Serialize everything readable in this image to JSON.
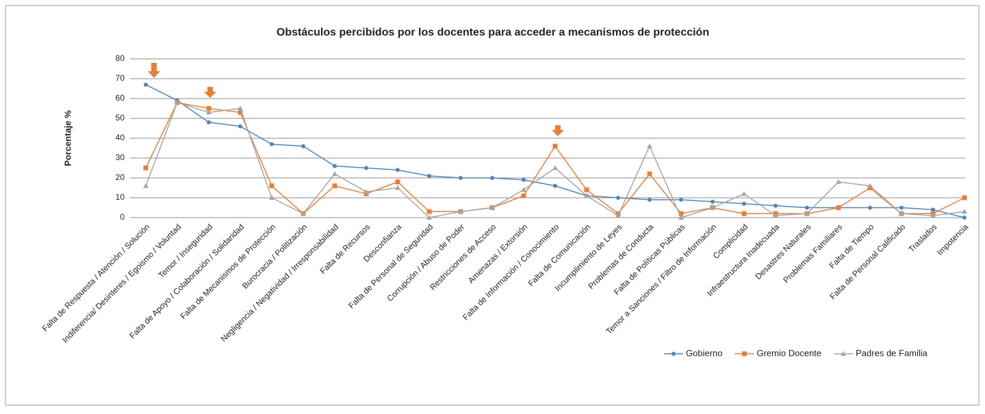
{
  "chart_data": {
    "type": "line",
    "title": "Obstáculos percibidos por los docentes para acceder a mecanismos de protección",
    "y_label": "Porcentaje %",
    "categories": [
      "Falta de Respuesta / Atención / Solución",
      "Indiferencia/ Desinteres / Egoismo / Voluntad",
      "Temor / Inseguridad",
      "Falta de Apoyo / Colaboración / Solidaridad",
      "Falta de Mecanismos de Protección",
      "Burocracia / Politización",
      "Negligencia / Negatividad / Irresponsabilidad",
      "Falta de Recursos",
      "Desconfianza",
      "Falta de Personal de Seguridad",
      "Corrupción / Abuso de Poder",
      "Restricciones de Acceso",
      "Amenazas / Extorsión",
      "Falta de Información / Conocimiento",
      "Falta de Comunicación",
      "Incumplimiento de Leyes",
      "Problemas de Conducta",
      "Falta de Políticas Públicas",
      "Temor a Sanciones / Filtro de Información",
      "Complicidad",
      "Infraestructura Inadecuada",
      "Desastres Naturales",
      "Problemas Familiares",
      "Falta de Tiempo",
      "Falta de Personal Calificado",
      "Traslados",
      "Impotencia"
    ],
    "series": [
      {
        "name": "Gobierno",
        "color": "#4a86c5",
        "marker": "circle",
        "values": [
          67,
          59,
          48,
          46,
          37,
          36,
          26,
          25,
          24,
          21,
          20,
          20,
          19,
          16,
          11,
          10,
          9,
          9,
          8,
          7,
          6,
          5,
          5,
          5,
          5,
          4,
          0
        ]
      },
      {
        "name": "Gremio Docente",
        "color": "#ed7d31",
        "marker": "square",
        "values": [
          25,
          58,
          55,
          53,
          16,
          2,
          16,
          12,
          18,
          3,
          3,
          5,
          11,
          36,
          14,
          2,
          22,
          2,
          5,
          2,
          2,
          2,
          5,
          15,
          2,
          2,
          10
        ]
      },
      {
        "name": "Padres de Familia",
        "color": "#a5a5a5",
        "marker": "triangle",
        "values": [
          16,
          58,
          53,
          55,
          10,
          2,
          22,
          13,
          15,
          0,
          3,
          5,
          14,
          25,
          11,
          1,
          36,
          0,
          5,
          12,
          1,
          2,
          18,
          16,
          2,
          1,
          3
        ]
      }
    ],
    "ylim": [
      0,
      80
    ],
    "yticks": [
      0,
      10,
      20,
      30,
      40,
      50,
      60,
      70,
      80
    ],
    "grid": true,
    "legend": "lower right"
  }
}
